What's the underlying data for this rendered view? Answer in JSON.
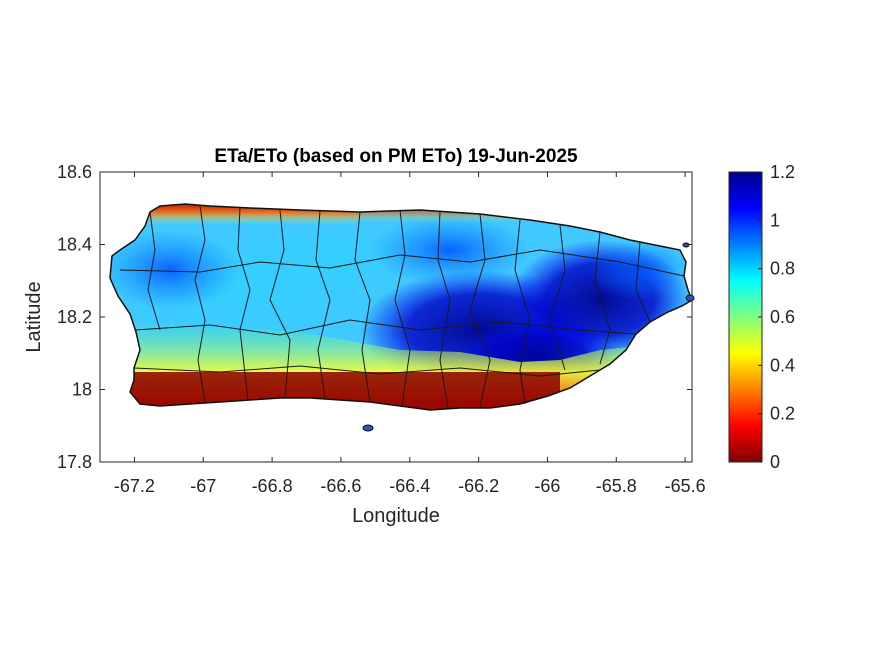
{
  "title": "ETa/ETo (based on PM ETo) 19-Jun-2025",
  "xlabel": "Longitude",
  "ylabel": "Latitude",
  "xlim": [
    -67.3,
    -65.58
  ],
  "ylim": [
    17.8,
    18.6
  ],
  "xticks": [
    {
      "value": -67.2,
      "label": "-67.2"
    },
    {
      "value": -67.0,
      "label": "-67"
    },
    {
      "value": -66.8,
      "label": "-66.8"
    },
    {
      "value": -66.6,
      "label": "-66.6"
    },
    {
      "value": -66.4,
      "label": "-66.4"
    },
    {
      "value": -66.2,
      "label": "-66.2"
    },
    {
      "value": -66.0,
      "label": "-66"
    },
    {
      "value": -65.8,
      "label": "-65.8"
    },
    {
      "value": -65.6,
      "label": "-65.6"
    }
  ],
  "yticks": [
    {
      "value": 17.8,
      "label": "17.8"
    },
    {
      "value": 18.0,
      "label": "18"
    },
    {
      "value": 18.2,
      "label": "18.2"
    },
    {
      "value": 18.4,
      "label": "18.4"
    },
    {
      "value": 18.6,
      "label": "18.6"
    }
  ],
  "colorbar": {
    "colormap": "jet (reversed: dark red = 0, dark blue = 1.2)",
    "min": 0,
    "max": 1.2,
    "ticks": [
      {
        "value": 0,
        "label": "0"
      },
      {
        "value": 0.2,
        "label": "0.2"
      },
      {
        "value": 0.4,
        "label": "0.4"
      },
      {
        "value": 0.6,
        "label": "0.6"
      },
      {
        "value": 0.8,
        "label": "0.8"
      },
      {
        "value": 1.0,
        "label": "1"
      },
      {
        "value": 1.2,
        "label": "1.2"
      }
    ],
    "stops": [
      "#800000",
      "#ff0000",
      "#ff8000",
      "#ffff00",
      "#80ff80",
      "#00ffff",
      "#0080ff",
      "#0000ff",
      "#000090"
    ]
  },
  "map": {
    "region": "Puerto Rico",
    "variable": "ETa/ETo ratio",
    "features": [
      "municipality-boundaries",
      "coastline",
      "offshore-islets"
    ],
    "pattern": "low ratio (0-0.3) along south coast, moderate (0.6-0.9) across west and central, high (1.0-1.2) in east-central interior"
  }
}
